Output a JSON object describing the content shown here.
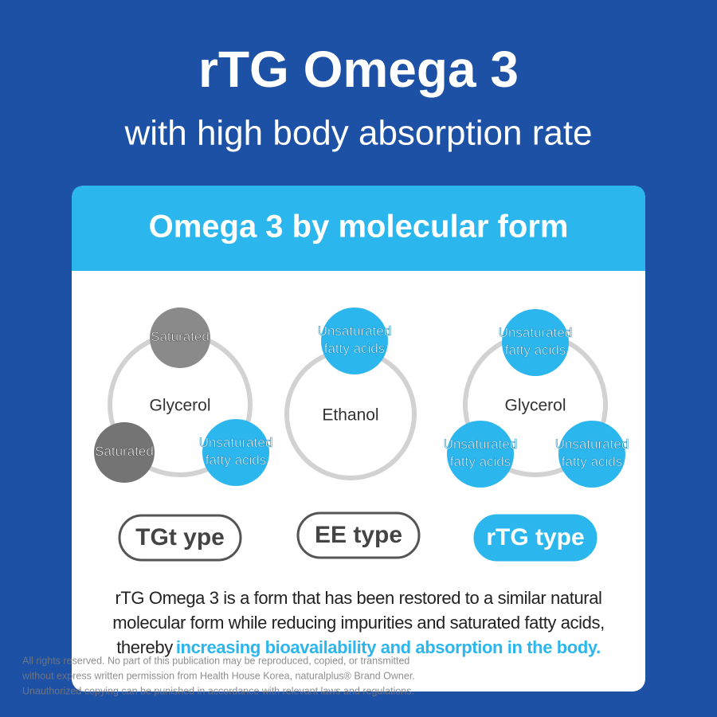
{
  "header": {
    "title": "rTG Omega 3",
    "subtitle": "with high body absorption rate"
  },
  "card": {
    "title": "Omega 3 by molecular form",
    "forms": [
      {
        "center": "Glycerol",
        "type": "TGt ype",
        "nodes": [
          {
            "lines": [
              "Saturated"
            ]
          },
          {
            "lines": [
              "Saturated"
            ]
          },
          {
            "lines": [
              "Unsaturated",
              "fatty acids"
            ]
          }
        ]
      },
      {
        "center": "Ethanol",
        "type": "EE type",
        "nodes": [
          {
            "lines": [
              "Unsaturated",
              "fatty acids"
            ]
          }
        ]
      },
      {
        "center": "Glycerol",
        "type": "rTG type",
        "nodes": [
          {
            "lines": [
              "Unsaturated",
              "fatty acids"
            ]
          },
          {
            "lines": [
              "Unsaturated",
              "fatty acids"
            ]
          },
          {
            "lines": [
              "Unsaturated",
              "fatty acids"
            ]
          }
        ]
      }
    ]
  },
  "description": {
    "lines": [
      "rTG Omega 3 is a form that has been restored to a similar natural",
      "molecular form while reducing impurities and saturated fatty acids,",
      "thereby"
    ],
    "highlight": "increasing bioavailability and absorption in the body."
  },
  "footer": {
    "lines": [
      "All rights reserved. No part of this publication may be reproduced, copied, or transmitted",
      "without express written permission from Health House Korea, naturalplus® Brand Owner.",
      "Unauthorized copying can be punished in accordance with relevant laws and regulations."
    ]
  }
}
